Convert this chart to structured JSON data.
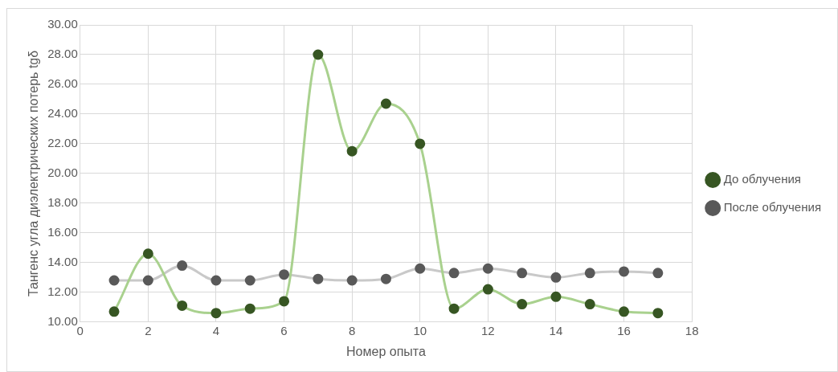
{
  "chart_data": {
    "type": "line",
    "xlabel": "Номер опыта",
    "ylabel": "Тангенс угла диэлектрических потерь tgδ",
    "x": [
      1,
      2,
      3,
      4,
      5,
      6,
      7,
      8,
      9,
      10,
      11,
      12,
      13,
      14,
      15,
      16,
      17
    ],
    "series": [
      {
        "name": "До облучения",
        "color": "#a9d18e",
        "colors": [
          "#375623",
          "#375623",
          "#375623",
          "#375623",
          "#375623",
          "#375623",
          "#375623",
          "#375623",
          "#375623",
          "#375623",
          "#375623",
          "#375623",
          "#375623",
          "#375623",
          "#375623",
          "#375623",
          "#375623"
        ],
        "values": [
          10.7,
          14.6,
          11.1,
          10.6,
          10.9,
          11.4,
          28.0,
          21.5,
          24.7,
          22.0,
          10.9,
          12.2,
          11.2,
          11.7,
          11.2,
          10.7,
          10.6
        ]
      },
      {
        "name": "После облучения",
        "color": "#c9c9c9",
        "colors": [
          "#595959",
          "#595959",
          "#595959",
          "#595959",
          "#595959",
          "#595959",
          "#595959",
          "#595959",
          "#595959",
          "#595959",
          "#595959",
          "#595959",
          "#595959",
          "#595959",
          "#595959",
          "#595959",
          "#595959"
        ],
        "values": [
          12.8,
          12.8,
          13.8,
          12.8,
          12.8,
          13.2,
          12.9,
          12.8,
          12.9,
          13.6,
          13.3,
          13.6,
          13.3,
          13.0,
          13.3,
          13.4,
          13.3
        ]
      }
    ],
    "xlim": [
      0,
      18
    ],
    "xticks": [
      0,
      2,
      4,
      6,
      8,
      10,
      12,
      14,
      16,
      18
    ],
    "ylim": [
      10,
      30
    ],
    "yticks": [
      {
        "value": 10,
        "label": "10.00"
      },
      {
        "value": 12,
        "label": "12.00"
      },
      {
        "value": 14,
        "label": "14.00"
      },
      {
        "value": 16,
        "label": "16.00"
      },
      {
        "value": 18,
        "label": "18.00"
      },
      {
        "value": 20,
        "label": "20.00"
      },
      {
        "value": 22,
        "label": "22.00"
      },
      {
        "value": 24,
        "label": "24.00"
      },
      {
        "value": 26,
        "label": "26.00"
      },
      {
        "value": 28,
        "label": "28.00"
      },
      {
        "value": 30,
        "label": "30.00"
      }
    ],
    "grid": true,
    "legend": "right",
    "marker": "circle",
    "line_style": "solid"
  }
}
